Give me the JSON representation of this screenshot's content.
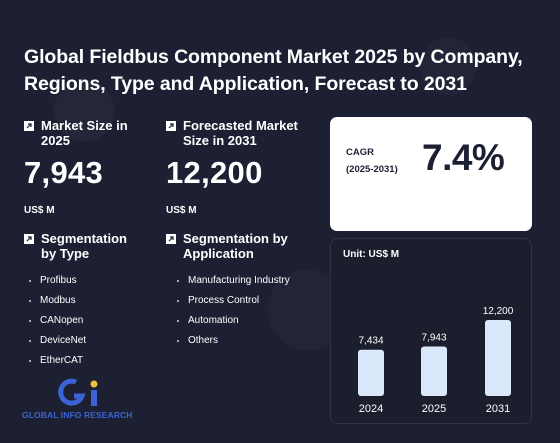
{
  "title": "Global Fieldbus Component Market 2025 by Company, Regions, Type and Application, Forecast to 2031",
  "market_size": {
    "label": "Market Size in 2025",
    "value": "7,943",
    "unit": "US$ M"
  },
  "forecast": {
    "label": "Forecasted Market Size in 2031",
    "value": "12,200",
    "unit": "US$ M"
  },
  "cagr": {
    "label_line1": "CAGR",
    "label_line2": "(2025-2031)",
    "value": "7.4%"
  },
  "segmentation_type": {
    "label": "Segmentation by Type",
    "items": [
      "Profibus",
      "Modbus",
      "CANopen",
      "DeviceNet",
      "EtherCAT"
    ]
  },
  "segmentation_application": {
    "label": "Segmentation by Application",
    "items": [
      "Manufacturing Industry",
      "Process Control",
      "Automation",
      "Others"
    ]
  },
  "chart_unit": "Unit: US$ M",
  "logo_text": "GLOBAL INFO RESEARCH",
  "colors": {
    "background": "#1d2032",
    "bar": "#dbe7fb",
    "logo_blue": "#3b63d6",
    "logo_yellow": "#e8c23a"
  },
  "chart_data": {
    "type": "bar",
    "categories": [
      "2024",
      "2025",
      "2031"
    ],
    "values": [
      7434,
      7943,
      12200
    ],
    "data_labels": [
      "7,434",
      "7,943",
      "12,200"
    ],
    "title": "",
    "xlabel": "",
    "ylabel": "",
    "ylim": [
      0,
      12200
    ],
    "grid": false
  }
}
